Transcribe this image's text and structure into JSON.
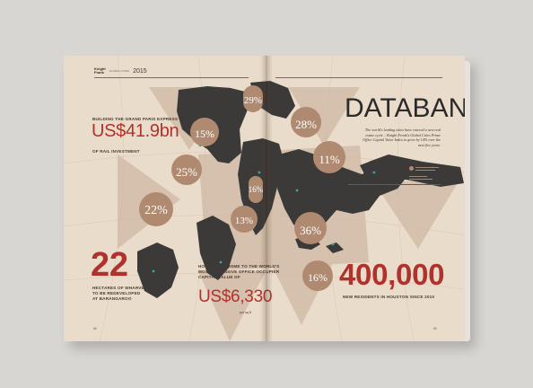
{
  "header": {
    "logo_line1": "Knight",
    "logo_line2": "Frank",
    "issue_tag": "GLOBAL CITIES",
    "year": "2015"
  },
  "left_page": {
    "grand_paris": {
      "headline": "BUILDING THE GRAND PARIS EXPRESS",
      "amount": "US$41.9bn",
      "caption": "OF RAIL INVESTMENT"
    },
    "wharves": {
      "number": "22",
      "caption_line1": "HECTARES OF WHARVES",
      "caption_line2": "TO BE REDEVELOPED",
      "caption_line3": "AT BARANGAROO"
    },
    "hong_kong": {
      "caption_line1": "HONG KONG HOME TO THE WORLD'S",
      "caption_line2": "MOST EXPENSIVE OFFICE OCCUPIER",
      "caption_line3": "CAPITAL VALUE OF",
      "amount": "US$6,330",
      "unit": "per sq ft"
    },
    "folio": "88"
  },
  "right_page": {
    "title": "DATABANK",
    "intro": "The world's leading cities have entered a new real estate cycle – Knight Frank's Global Cities Prime Office Capital Value Index to grow by 14% over the next five years.",
    "houston": {
      "number": "400,000",
      "caption": "NEW RESIDENTS IN HOUSTON SINCE 2010"
    },
    "folio": "89"
  },
  "bubbles": [
    {
      "pct": "29%"
    },
    {
      "pct": "15%"
    },
    {
      "pct": "25%"
    },
    {
      "pct": "22%"
    },
    {
      "pct": "16%"
    },
    {
      "pct": "13%"
    },
    {
      "pct": "28%"
    },
    {
      "pct": "11%"
    },
    {
      "pct": "36%"
    },
    {
      "pct": "16%"
    }
  ],
  "colors": {
    "paper": "#eadccb",
    "land": "#3a3a3a",
    "accent_red": "#b1322c",
    "bubble": "#b08a70",
    "star_band": "#cdb6a1"
  }
}
